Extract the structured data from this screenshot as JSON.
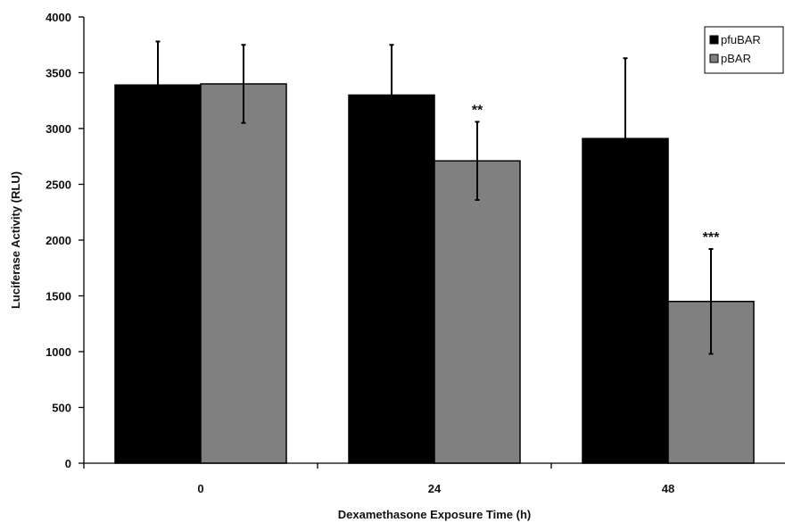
{
  "chart_data": {
    "type": "bar",
    "categories": [
      "0",
      "24",
      "48"
    ],
    "xlabel": "Dexamethasone Exposure Time (h)",
    "ylabel": "Luciferase Activity (RLU)",
    "ylim": [
      0,
      4000
    ],
    "yticks": [
      0,
      500,
      1000,
      1500,
      2000,
      2500,
      3000,
      3500,
      4000
    ],
    "grid": false,
    "legend_position": "top-right",
    "series": [
      {
        "name": "pfuBAR",
        "color": "#000000",
        "values": [
          3390,
          3300,
          2910
        ],
        "errors": [
          390,
          450,
          720
        ]
      },
      {
        "name": "pBAR",
        "color": "#808080",
        "values": [
          3400,
          2710,
          1450
        ],
        "errors": [
          350,
          350,
          470
        ]
      }
    ],
    "annotations": [
      {
        "category": "24",
        "series": "pBAR",
        "text": "**"
      },
      {
        "category": "48",
        "series": "pBAR",
        "text": "***"
      }
    ]
  }
}
